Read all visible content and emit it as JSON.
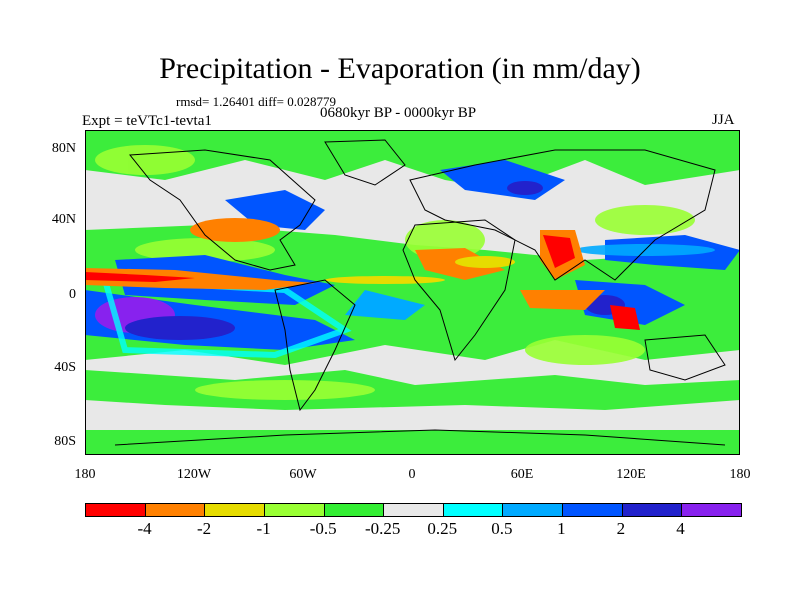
{
  "header": {
    "title": "Precipitation - Evaporation (in mm/day)",
    "stats": "rmsd= 1.26401 diff= 0.028779",
    "period": "0680kyr BP - 0000kyr BP",
    "experiment": "Expt = teVTc1-tevta1",
    "season": "JJA"
  },
  "map": {
    "lat_labels": [
      "80N",
      "40N",
      "0",
      "40S",
      "80S"
    ],
    "lon_labels": [
      "180",
      "120W",
      "60W",
      "0",
      "60E",
      "120E",
      "180"
    ],
    "projection": "cylindrical equidistant"
  },
  "colorbar": {
    "levels": [
      "-4",
      "-2",
      "-1",
      "-0.5",
      "-0.25",
      "0.25",
      "0.5",
      "1",
      "2",
      "4"
    ],
    "colors": [
      "#ff0000",
      "#ff8000",
      "#e6dc00",
      "#99ff33",
      "#33ee33",
      "#e8e8e8",
      "#00ffff",
      "#00aaff",
      "#0055ff",
      "#2222cc",
      "#8822ee"
    ]
  }
}
